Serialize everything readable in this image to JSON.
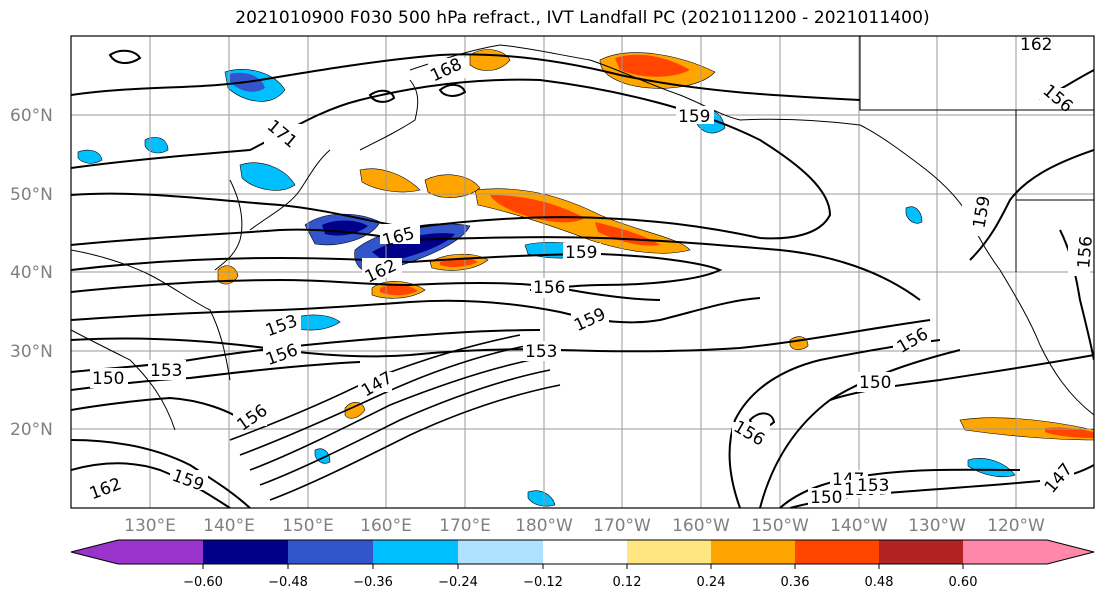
{
  "title": "2021010900 F030 500 hPa refract., IVT Landfall PC (2021011200 - 2021011400)",
  "lat_labels": [
    "60°N",
    "50°N",
    "40°N",
    "30°N",
    "20°N"
  ],
  "lon_labels": [
    "130°E",
    "140°E",
    "150°E",
    "160°E",
    "170°E",
    "180°W",
    "170°W",
    "160°W",
    "150°W",
    "140°W",
    "130°W",
    "120°W"
  ],
  "contour_labels": [
    "168",
    "171",
    "165",
    "162",
    "159",
    "156",
    "153",
    "159",
    "156",
    "153",
    "150",
    "153",
    "147",
    "156",
    "150",
    "156",
    "159",
    "162",
    "159",
    "156",
    "162",
    "159",
    "156",
    "150",
    "147",
    "147",
    "150",
    "153",
    "156"
  ],
  "colorbar": {
    "ticks": [
      "−0.60",
      "−0.48",
      "−0.36",
      "−0.24",
      "−0.12",
      "0.12",
      "0.24",
      "0.36",
      "0.48",
      "0.60"
    ],
    "colors": [
      "#9933cc",
      "#00008b",
      "#3355cc",
      "#00bfff",
      "#b0e0ff",
      "#ffffff",
      "#ffe680",
      "#ffa500",
      "#ff4500",
      "#b22222",
      "#ff88aa"
    ]
  },
  "colors": {
    "grid": "#9a9a9a",
    "tick_labels": "#808080",
    "contours": "#000000"
  }
}
